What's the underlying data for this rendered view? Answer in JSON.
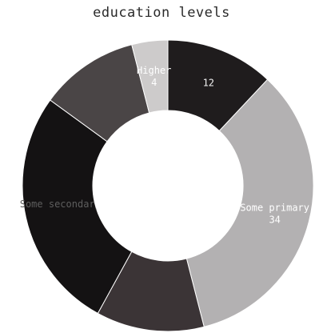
{
  "chart_data": {
    "type": "pie",
    "title": "education levels",
    "donut": true,
    "slices": [
      {
        "label": "",
        "value": 12,
        "display_value": "12",
        "color": "#1f1c1d",
        "label_color": "#f2f2f2"
      },
      {
        "label": "Some primary",
        "value": 34,
        "display_value": "34",
        "color": "#b3b1b2",
        "label_color": "#ffffff"
      },
      {
        "label": "",
        "value": 12,
        "display_value": "",
        "color": "#3b3436",
        "label_color": "#dddddd"
      },
      {
        "label": "Some secondary",
        "value": 27,
        "display_value": "",
        "color": "#141213",
        "label_color": "#5e5e5e"
      },
      {
        "label": "",
        "value": 11,
        "display_value": "",
        "color": "#4a4546",
        "label_color": "#9a9a9a"
      },
      {
        "label": "Higher",
        "value": 4,
        "display_value": "4",
        "color": "#cdcbcb",
        "label_color": "#ffffff"
      }
    ]
  }
}
